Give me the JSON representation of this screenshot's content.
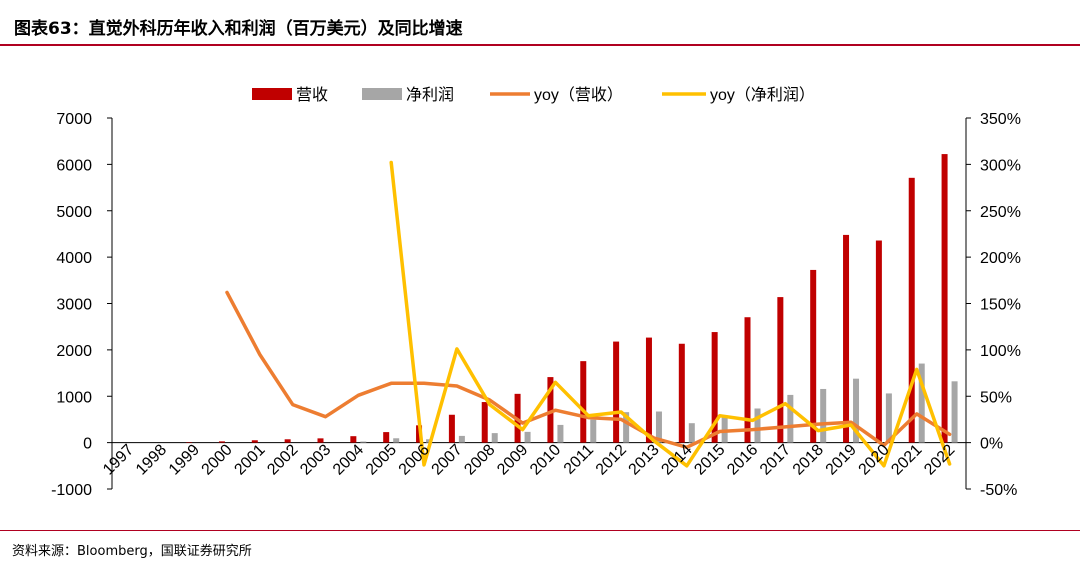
{
  "page": {
    "title": "图表63：直觉外科历年收入和利润（百万美元）及同比增速",
    "source": "资料来源：Bloomberg，国联证券研究所",
    "accent_color": "#b00020"
  },
  "chart_data": {
    "type": "bar",
    "categories": [
      "1997",
      "1998",
      "1999",
      "2000",
      "2001",
      "2002",
      "2003",
      "2004",
      "2005",
      "2006",
      "2007",
      "2008",
      "2009",
      "2010",
      "2011",
      "2012",
      "2013",
      "2014",
      "2015",
      "2016",
      "2017",
      "2018",
      "2019",
      "2020",
      "2021",
      "2022"
    ],
    "series": [
      {
        "name": "营收",
        "type": "bar",
        "axis": "left",
        "color": "#c00000",
        "values": [
          0,
          0,
          10,
          27,
          51,
          72,
          92,
          139,
          227,
          373,
          601,
          875,
          1052,
          1413,
          1757,
          2179,
          2265,
          2132,
          2384,
          2704,
          3138,
          3724,
          4479,
          4358,
          5710,
          6222
        ]
      },
      {
        "name": "净利润",
        "type": "bar",
        "axis": "left",
        "color": "#a6a6a6",
        "values": [
          0,
          0,
          -5,
          -10,
          -15,
          -18,
          -9,
          23,
          94,
          72,
          145,
          205,
          232,
          382,
          495,
          657,
          671,
          419,
          589,
          736,
          1029,
          1157,
          1379,
          1061,
          1705,
          1322
        ]
      },
      {
        "name": "yoy（营收）",
        "type": "line",
        "axis": "right",
        "color": "#ed7d31",
        "values": [
          null,
          null,
          null,
          1.62,
          0.95,
          0.41,
          0.28,
          0.51,
          0.64,
          0.64,
          0.61,
          0.46,
          0.21,
          0.35,
          0.27,
          0.25,
          0.05,
          -0.05,
          0.12,
          0.14,
          0.17,
          0.2,
          0.22,
          -0.03,
          0.31,
          0.09
        ]
      },
      {
        "name": "yoy（净利润）",
        "type": "line",
        "axis": "right",
        "color": "#ffc000",
        "values": [
          null,
          null,
          null,
          null,
          null,
          null,
          null,
          null,
          3.02,
          -0.24,
          1.01,
          0.41,
          0.14,
          0.65,
          0.29,
          0.33,
          0.02,
          -0.25,
          0.29,
          0.24,
          0.42,
          0.13,
          0.19,
          -0.25,
          0.79,
          -0.23
        ]
      }
    ],
    "y_left": {
      "min": -1000,
      "max": 7000,
      "ticks": [
        -1000,
        0,
        1000,
        2000,
        3000,
        4000,
        5000,
        6000,
        7000
      ]
    },
    "y_right": {
      "min": -0.5,
      "max": 3.5,
      "ticks": [
        "-50%",
        "0%",
        "50%",
        "100%",
        "150%",
        "200%",
        "250%",
        "300%",
        "350%"
      ]
    },
    "legend_position": "top",
    "grid": false
  }
}
